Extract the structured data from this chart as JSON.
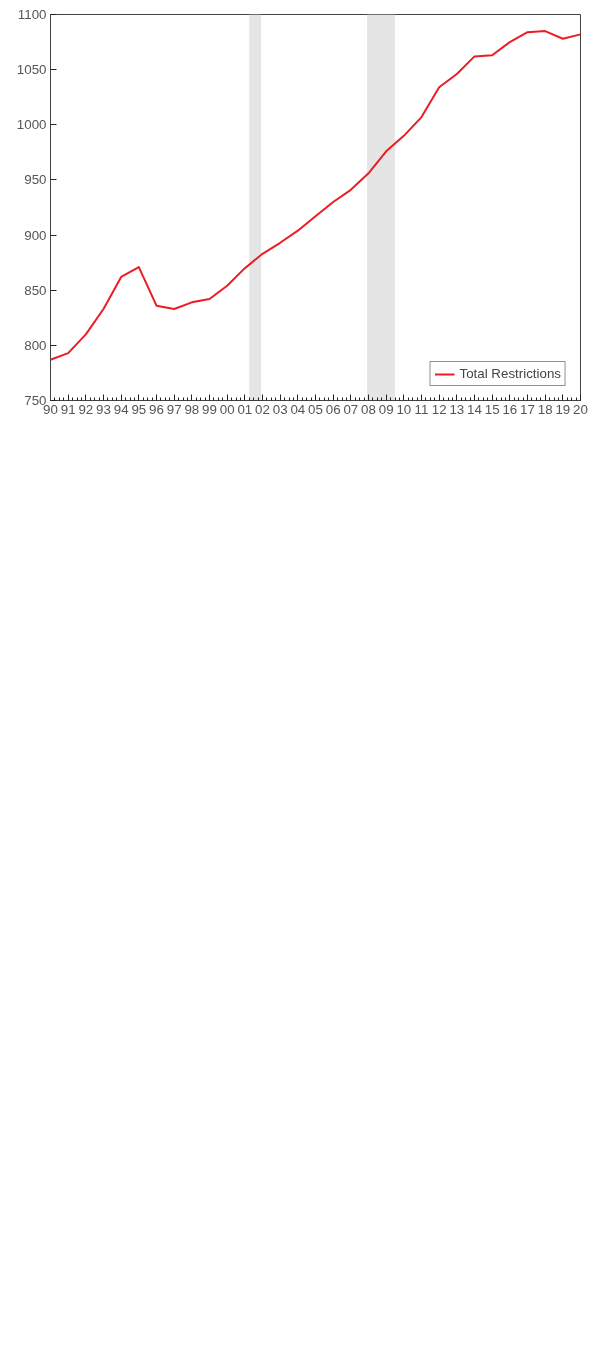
{
  "chart_data": {
    "type": "line",
    "x": [
      1990,
      1991,
      1992,
      1993,
      1994,
      1995,
      1996,
      1997,
      1998,
      1999,
      2000,
      2001,
      2002,
      2003,
      2004,
      2005,
      2006,
      2007,
      2008,
      2009,
      2010,
      2011,
      2012,
      2013,
      2014,
      2015,
      2016,
      2017,
      2018,
      2019,
      2020
    ],
    "series": [
      {
        "name": "Total Restrictions",
        "color": "#ed1c24",
        "values": [
          787,
          793,
          810,
          833,
          862,
          871,
          836,
          833,
          839,
          842,
          854,
          870,
          883,
          893,
          904,
          917,
          930,
          941,
          956,
          976,
          990,
          1007,
          1034,
          1046,
          1062,
          1063,
          1075,
          1084,
          1085,
          1078,
          1082
        ]
      }
    ],
    "xlim": [
      1990,
      2020
    ],
    "xticks": [
      {
        "value": 1990,
        "label": "90"
      },
      {
        "value": 1991,
        "label": "91"
      },
      {
        "value": 1992,
        "label": "92"
      },
      {
        "value": 1993,
        "label": "93"
      },
      {
        "value": 1994,
        "label": "94"
      },
      {
        "value": 1995,
        "label": "95"
      },
      {
        "value": 1996,
        "label": "96"
      },
      {
        "value": 1997,
        "label": "97"
      },
      {
        "value": 1998,
        "label": "98"
      },
      {
        "value": 1999,
        "label": "99"
      },
      {
        "value": 2000,
        "label": "00"
      },
      {
        "value": 2001,
        "label": "01"
      },
      {
        "value": 2002,
        "label": "02"
      },
      {
        "value": 2003,
        "label": "03"
      },
      {
        "value": 2004,
        "label": "04"
      },
      {
        "value": 2005,
        "label": "05"
      },
      {
        "value": 2006,
        "label": "06"
      },
      {
        "value": 2007,
        "label": "07"
      },
      {
        "value": 2008,
        "label": "08"
      },
      {
        "value": 2009,
        "label": "09"
      },
      {
        "value": 2010,
        "label": "10"
      },
      {
        "value": 2011,
        "label": "11"
      },
      {
        "value": 2012,
        "label": "12"
      },
      {
        "value": 2013,
        "label": "13"
      },
      {
        "value": 2014,
        "label": "14"
      },
      {
        "value": 2015,
        "label": "15"
      },
      {
        "value": 2016,
        "label": "16"
      },
      {
        "value": 2017,
        "label": "17"
      },
      {
        "value": 2018,
        "label": "18"
      },
      {
        "value": 2019,
        "label": "19"
      },
      {
        "value": 2020,
        "label": "20"
      }
    ],
    "ylim": [
      750,
      1100
    ],
    "yticks": [
      750,
      800,
      850,
      900,
      950,
      1000,
      1050,
      1100
    ],
    "bands": [
      {
        "axis": "x",
        "from": 2001.25,
        "to": 2001.92,
        "color": "#e5e5e5"
      },
      {
        "axis": "x",
        "from": 2007.92,
        "to": 2009.5,
        "color": "#e5e5e5"
      }
    ],
    "legend": "bottom right",
    "grid": false,
    "line_style": "solid"
  }
}
